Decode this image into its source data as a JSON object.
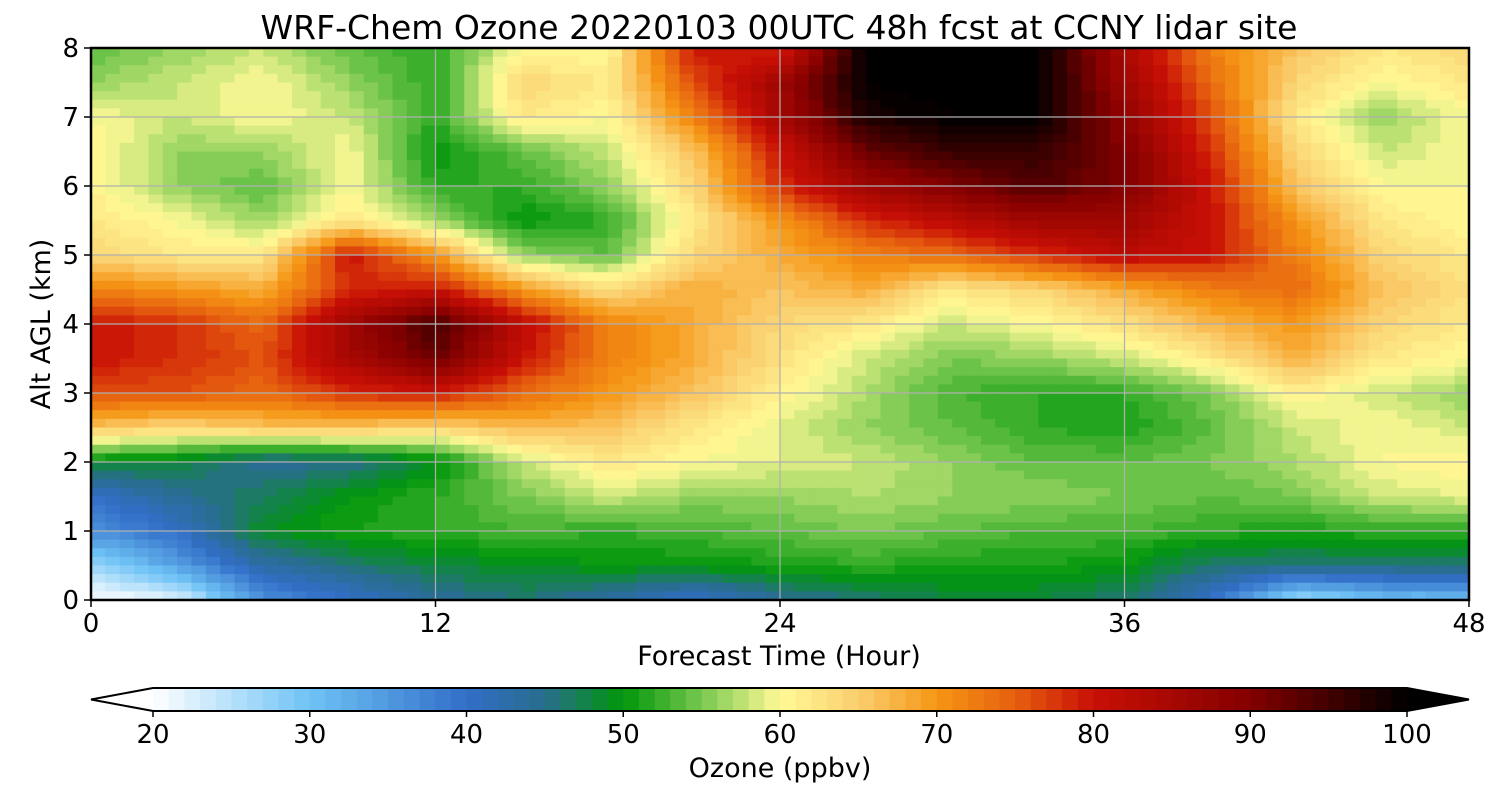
{
  "chart_data": {
    "type": "heatmap",
    "title": "WRF-Chem Ozone  20220103 00UTC 48h fcst at CCNY lidar site",
    "xlabel": "Forecast Time (Hour)",
    "ylabel": "Alt AGL (km)",
    "xlim": [
      0,
      48
    ],
    "ylim": [
      0,
      8
    ],
    "x_ticks": [
      "0",
      "12",
      "24",
      "36",
      "48"
    ],
    "y_ticks": [
      "0",
      "1",
      "2",
      "3",
      "4",
      "5",
      "6",
      "7",
      "8"
    ],
    "grid": true,
    "colorbar": {
      "label": "Ozone  (ppbv)",
      "min": 20,
      "max": 100,
      "step": 1,
      "extend": "both",
      "ticks": [
        "20",
        "30",
        "40",
        "50",
        "60",
        "70",
        "80",
        "90",
        "100"
      ]
    },
    "ozone_ppbv": {
      "x": [
        0,
        3,
        6,
        9,
        12,
        15,
        18,
        21,
        24,
        27,
        30,
        33,
        36,
        39,
        42,
        45,
        48
      ],
      "y": [
        0,
        0.5,
        1,
        1.5,
        2,
        2.5,
        3,
        3.5,
        4,
        4.5,
        5,
        5.5,
        6,
        6.5,
        7,
        7.5,
        8
      ],
      "z": [
        [
          20,
          22,
          36,
          40,
          44,
          46,
          43,
          40,
          44,
          46,
          48,
          48,
          46,
          40,
          26,
          30,
          30
        ],
        [
          27,
          34,
          43,
          46,
          48,
          49,
          50,
          50,
          51,
          52,
          51,
          51,
          50,
          46,
          46,
          46,
          46
        ],
        [
          36,
          40,
          49,
          51,
          52,
          53,
          52,
          53,
          54,
          55,
          54,
          53,
          53,
          52,
          51,
          52,
          52
        ],
        [
          40,
          44,
          47,
          50,
          52,
          55,
          58,
          56,
          56,
          57,
          56,
          56,
          55,
          54,
          55,
          58,
          59
        ],
        [
          49,
          48,
          44,
          45,
          49,
          58,
          62,
          60,
          59,
          58,
          56,
          54,
          54,
          55,
          57,
          60,
          61
        ],
        [
          66,
          64,
          66,
          66,
          64,
          67,
          66,
          62,
          59,
          56,
          54,
          52,
          51,
          54,
          58,
          60,
          58
        ],
        [
          76,
          76,
          74,
          78,
          80,
          74,
          70,
          66,
          61,
          57,
          53,
          52,
          52,
          55,
          61,
          58,
          56
        ],
        [
          80,
          78,
          76,
          85,
          92,
          80,
          72,
          68,
          63,
          58,
          55,
          56,
          58,
          62,
          68,
          62,
          60
        ],
        [
          80,
          78,
          74,
          86,
          95,
          82,
          72,
          68,
          64,
          62,
          58,
          60,
          63,
          67,
          70,
          64,
          62
        ],
        [
          72,
          70,
          68,
          78,
          80,
          70,
          63,
          68,
          66,
          68,
          62,
          64,
          68,
          72,
          74,
          66,
          63
        ],
        [
          64,
          62,
          62,
          80,
          70,
          56,
          54,
          64,
          68,
          72,
          74,
          78,
          82,
          80,
          72,
          64,
          62
        ],
        [
          62,
          60,
          56,
          62,
          56,
          50,
          52,
          62,
          70,
          78,
          82,
          86,
          86,
          80,
          70,
          62,
          60
        ],
        [
          61,
          56,
          54,
          60,
          52,
          52,
          56,
          64,
          78,
          86,
          90,
          94,
          90,
          80,
          66,
          60,
          60
        ],
        [
          61,
          56,
          56,
          60,
          50,
          54,
          58,
          66,
          80,
          92,
          96,
          96,
          90,
          78,
          64,
          58,
          60
        ],
        [
          60,
          58,
          60,
          58,
          52,
          62,
          60,
          72,
          85,
          98,
          100,
          100,
          88,
          76,
          62,
          56,
          60
        ],
        [
          56,
          58,
          60,
          56,
          52,
          64,
          62,
          76,
          86,
          100,
          101,
          100,
          86,
          74,
          64,
          60,
          62
        ],
        [
          54,
          56,
          58,
          54,
          52,
          60,
          60,
          80,
          78,
          100,
          102,
          100,
          84,
          72,
          66,
          62,
          64
        ]
      ]
    }
  }
}
